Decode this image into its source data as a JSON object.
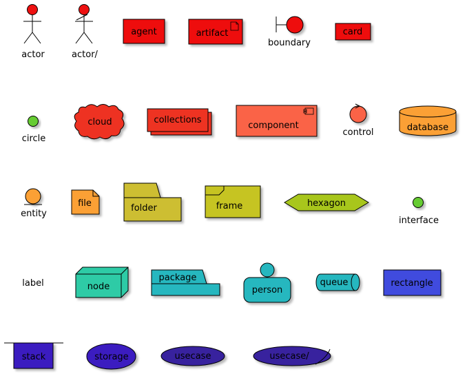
{
  "diagram": {
    "labels": {
      "actor": "actor",
      "actor_slash": "actor/",
      "agent": "agent",
      "artifact": "artifact",
      "boundary": "boundary",
      "card": "card",
      "circle": "circle",
      "cloud": "cloud",
      "collections": "collections",
      "component": "component",
      "control": "control",
      "database": "database",
      "entity": "entity",
      "file": "file",
      "folder": "folder",
      "frame": "frame",
      "hexagon": "hexagon",
      "interface": "interface",
      "label": "label",
      "node": "node",
      "package": "package",
      "person": "person",
      "queue": "queue",
      "rectangle": "rectangle",
      "stack": "stack",
      "storage": "storage",
      "usecase": "usecase",
      "usecase_slash": "usecase/"
    },
    "colors": {
      "red": "#ee1111",
      "red_orange": "#ee3322",
      "orange_red": "#fa6447",
      "orange": "#fba035",
      "green": "#66cc33",
      "yellow_olive": "#cdbe30",
      "olive": "#c6c421",
      "lime_olive": "#a8c61e",
      "teal": "#2ecba6",
      "teal_blue": "#25b7bf",
      "blue": "#3f4cde",
      "indigo": "#3a1fc0",
      "indigo_dark": "#38229e"
    }
  }
}
